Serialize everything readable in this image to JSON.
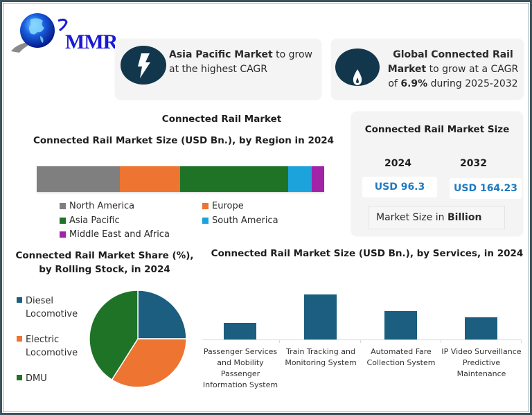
{
  "brand": {
    "logo_text": "MMR",
    "logo_icon": "globe-icon"
  },
  "callouts": {
    "apac": {
      "icon": "lightning-bolt-icon",
      "bold": "Asia Pacific Market",
      "rest": " to grow at the highest CAGR"
    },
    "global": {
      "icon": "flame-icon",
      "bold1": "Global Connected Rail Market",
      "mid": " to grow at a CAGR of ",
      "bold2": "6.9%",
      "rest": " during 2025-2032"
    }
  },
  "main_title": "Connected Rail Market",
  "market_size_card": {
    "title": "Connected Rail Market Size",
    "year_1": "2024",
    "year_2": "2032",
    "value_1": "USD 96.3",
    "value_2": "USD 164.23",
    "unit_prefix": "Market Size in ",
    "unit_bold": "Billion"
  },
  "colors": {
    "north_america": "#7f7f7f",
    "europe": "#ed7431",
    "asia_pacific": "#1f7327",
    "south_america": "#1ca3dc",
    "mea": "#a123a8",
    "diesel": "#1b5e7f",
    "electric": "#ed7431",
    "dmu": "#1f7327",
    "service_bar": "#1b5e7f",
    "icon_bg": "#12364b",
    "value_text": "#1f7ac0"
  },
  "chart_data": [
    {
      "type": "bar",
      "orientation": "horizontal-stacked",
      "title": "Connected Rail Market Size (USD Bn.), by Region in 2024",
      "categories": [
        "2024"
      ],
      "series": [
        {
          "name": "North America",
          "values": [
            27.8
          ]
        },
        {
          "name": "Europe",
          "values": [
            20.2
          ]
        },
        {
          "name": "Asia Pacific",
          "values": [
            36.2
          ]
        },
        {
          "name": "South America",
          "values": [
            7.9
          ]
        },
        {
          "name": "Middle East and Africa",
          "values": [
            4.2
          ]
        }
      ],
      "legend": [
        "North America",
        "Europe",
        "Asia Pacific",
        "South America",
        "Middle East and Africa"
      ],
      "legend_position": "bottom",
      "grid": false,
      "xlabel": "",
      "ylabel": ""
    },
    {
      "type": "pie",
      "title": "Connected Rail Market Share (%), by Rolling Stock, in 2024",
      "categories": [
        "Diesel Locomotive",
        "Electric Locomotive",
        "DMU"
      ],
      "values": [
        25,
        34,
        41
      ],
      "legend_position": "left"
    },
    {
      "type": "bar",
      "title": "Connected Rail Market Size (USD Bn.), by Services, in 2024",
      "categories": [
        "Passenger Services and Mobility Passenger Information System",
        "Train Tracking and Monitoring System",
        "Automated Fare Collection System",
        "IP Video Surveillance Predictive Maintenance"
      ],
      "values": [
        14,
        38,
        24,
        19
      ],
      "xlabel": "",
      "ylabel": "",
      "grid": false,
      "legend_position": "none"
    }
  ],
  "region_chart": {
    "title": "Connected Rail Market Size (USD Bn.), by Region in 2024",
    "legend": [
      {
        "label": "North America"
      },
      {
        "label": "Europe"
      },
      {
        "label": "Asia Pacific"
      },
      {
        "label": "South America"
      },
      {
        "label": "Middle East and Africa"
      }
    ]
  },
  "rolling_chart": {
    "title": "Connected Rail Market Share (%), by Rolling Stock, in 2024",
    "legend": [
      {
        "line1": "Diesel",
        "line2": "Locomotive"
      },
      {
        "line1": "Electric",
        "line2": "Locomotive"
      },
      {
        "line1": "DMU",
        "line2": ""
      }
    ]
  },
  "services_chart": {
    "title": "Connected Rail Market Size (USD Bn.), by Services, in 2024",
    "labels": [
      [
        "Passenger Services",
        "and Mobility",
        "Passenger",
        "Information System"
      ],
      [
        "Train Tracking and",
        "Monitoring System"
      ],
      [
        "Automated Fare",
        "Collection System"
      ],
      [
        "IP Video Surveillance",
        "Predictive",
        "Maintenance"
      ]
    ]
  }
}
